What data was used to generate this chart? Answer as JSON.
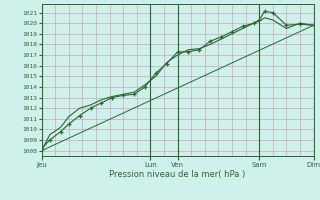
{
  "title": "Pression niveau de la mer( hPa )",
  "bg_color": "#d0f0ec",
  "grid_color": "#c8a8b8",
  "line_color": "#2a6630",
  "ylim": [
    1007.5,
    1021.8
  ],
  "yticks": [
    1008,
    1009,
    1010,
    1011,
    1012,
    1013,
    1014,
    1015,
    1016,
    1017,
    1018,
    1019,
    1020,
    1021
  ],
  "day_ticks": [
    0,
    4.0,
    5.0,
    8.0,
    10.0
  ],
  "day_labels": [
    "Jeu",
    "Lun",
    "Ven",
    "Sam",
    "Dim"
  ],
  "xlim": [
    0,
    10.0
  ],
  "x_minor_step": 0.5,
  "line1_x": [
    0.0,
    0.3,
    0.7,
    1.0,
    1.4,
    1.8,
    2.2,
    2.6,
    3.0,
    3.4,
    3.8,
    4.2,
    4.6,
    5.0,
    5.4,
    5.8,
    6.2,
    6.6,
    7.0,
    7.4,
    7.8,
    8.0,
    8.2,
    8.5,
    9.0,
    9.5,
    10.0
  ],
  "line1_y": [
    1008.2,
    1009.0,
    1009.8,
    1010.5,
    1011.3,
    1012.0,
    1012.5,
    1013.0,
    1013.2,
    1013.3,
    1014.0,
    1015.3,
    1016.2,
    1017.3,
    1017.3,
    1017.5,
    1018.3,
    1018.7,
    1019.2,
    1019.7,
    1020.0,
    1020.3,
    1021.1,
    1021.0,
    1019.8,
    1019.9,
    1019.8
  ],
  "line2_x": [
    0.0,
    0.3,
    0.7,
    1.0,
    1.4,
    1.8,
    2.2,
    2.6,
    3.0,
    3.4,
    3.8,
    4.2,
    4.6,
    5.0,
    5.4,
    5.8,
    6.2,
    6.6,
    7.0,
    7.4,
    7.8,
    8.0,
    8.2,
    8.5,
    9.0,
    9.5,
    10.0
  ],
  "line2_y": [
    1008.0,
    1009.5,
    1010.2,
    1011.2,
    1012.0,
    1012.3,
    1012.8,
    1013.1,
    1013.3,
    1013.5,
    1014.2,
    1015.0,
    1016.3,
    1017.0,
    1017.5,
    1017.6,
    1018.0,
    1018.5,
    1019.0,
    1019.5,
    1020.0,
    1020.2,
    1020.5,
    1020.3,
    1019.5,
    1020.0,
    1019.8
  ],
  "trend_x": [
    0.0,
    10.0
  ],
  "trend_y": [
    1008.0,
    1019.8
  ],
  "marker_x": [
    0.0,
    0.3,
    0.7,
    1.0,
    1.4,
    1.8,
    2.2,
    2.6,
    3.0,
    3.4,
    3.8,
    4.2,
    4.6,
    5.0,
    5.4,
    5.8,
    6.2,
    6.6,
    7.0,
    7.4,
    7.8,
    8.0,
    8.2,
    8.5,
    9.0,
    9.5,
    10.0
  ],
  "marker_y": [
    1008.2,
    1009.0,
    1009.8,
    1010.5,
    1011.3,
    1012.0,
    1012.5,
    1013.0,
    1013.2,
    1013.3,
    1014.0,
    1015.3,
    1016.2,
    1017.3,
    1017.3,
    1017.5,
    1018.3,
    1018.7,
    1019.2,
    1019.7,
    1020.0,
    1020.3,
    1021.1,
    1021.0,
    1019.8,
    1019.9,
    1019.8
  ]
}
